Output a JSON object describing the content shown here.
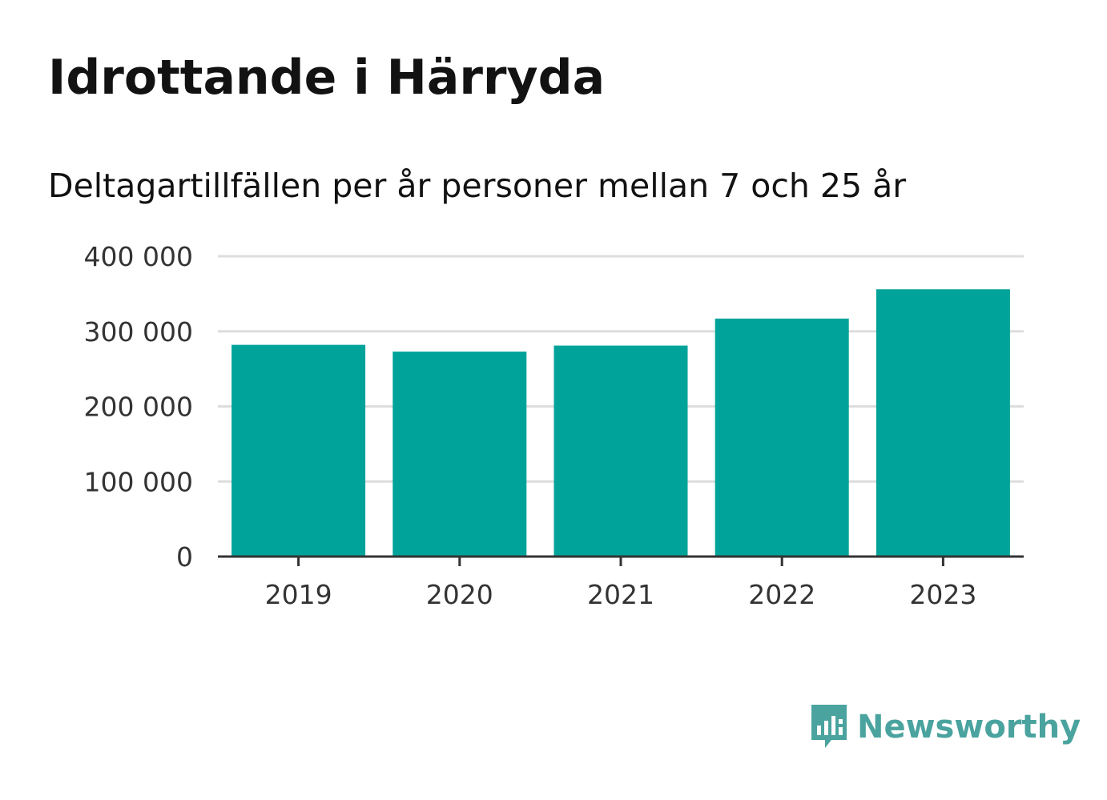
{
  "header": {
    "title": "Idrottande i Härryda",
    "subtitle": "Deltagartillfällen per år personer mellan 7 och 25 år"
  },
  "chart_data": {
    "type": "bar",
    "categories": [
      "2019",
      "2020",
      "2021",
      "2022",
      "2023"
    ],
    "values": [
      282000,
      273000,
      281000,
      317000,
      356000
    ],
    "ylim": [
      0,
      400000
    ],
    "yticks": [
      0,
      100000,
      200000,
      300000,
      400000
    ],
    "ytick_labels": [
      "0",
      "100 000",
      "200 000",
      "300 000",
      "400 000"
    ],
    "grid": true,
    "bar_color": "#00a39a"
  },
  "brand": {
    "name": "Newsworthy",
    "color": "#4aa39e",
    "icon": "chart-bubble-icon"
  }
}
